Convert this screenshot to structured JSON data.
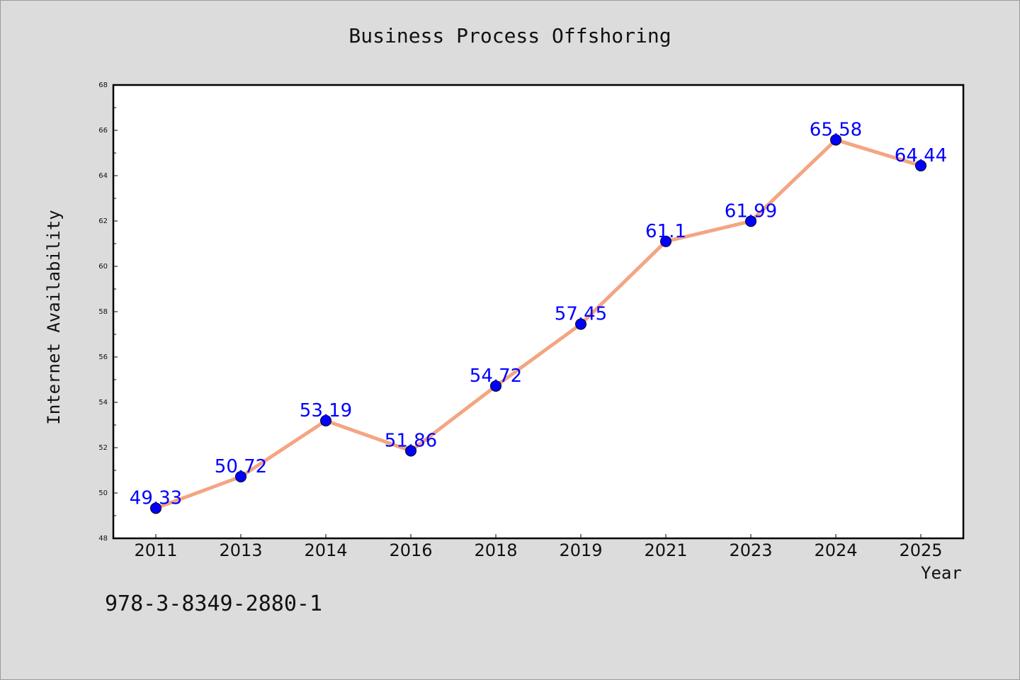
{
  "chart_data": {
    "type": "line",
    "title": "Business Process Offshoring",
    "xlabel": "Year",
    "ylabel": "Internet Availability",
    "categories": [
      "2011",
      "2013",
      "2014",
      "2016",
      "2018",
      "2019",
      "2021",
      "2023",
      "2024",
      "2025"
    ],
    "series": [
      {
        "values": [
          49.33,
          50.72,
          53.19,
          51.86,
          54.72,
          57.45,
          61.1,
          61.99,
          65.58,
          64.44
        ]
      }
    ],
    "data_labels": [
      "49.33",
      "50.72",
      "53.19",
      "51.86",
      "54.72",
      "57.45",
      "61.1",
      "61.99",
      "65.58",
      "64.44"
    ],
    "ylim": [
      48,
      68
    ],
    "yticks": [
      48,
      50,
      52,
      54,
      56,
      58,
      60,
      62,
      64,
      66,
      68
    ],
    "grid": false,
    "line_color": "#f4a582",
    "marker_color": "#0000ff",
    "label_color": "#0000ff"
  },
  "footnote": "978-3-8349-2880-1"
}
